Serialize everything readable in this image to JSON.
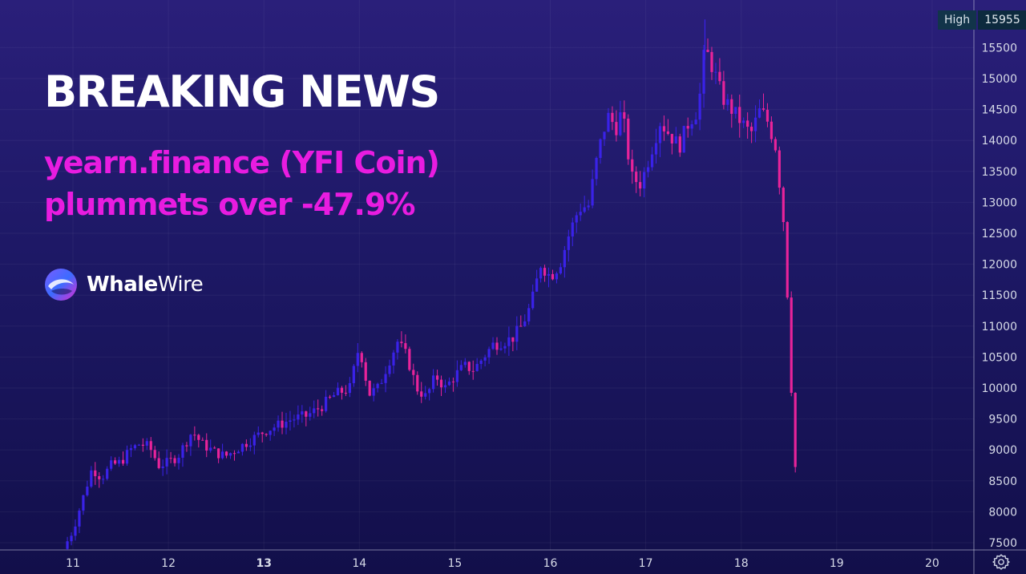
{
  "headline": "BREAKING NEWS",
  "subheadline": {
    "line1": "yearn.finance (YFI Coin)",
    "line2": "plummets over -47.9%"
  },
  "brand": {
    "name_bold": "Whale",
    "name_light": "Wire",
    "icon": "whale-logo-icon"
  },
  "high_marker": {
    "label": "High",
    "value": "15955"
  },
  "colors": {
    "up": "#3a22e8",
    "down": "#e8239a",
    "headline": "#ffffff",
    "accent": "#e81ce0",
    "axis_text": "#d7dbe8"
  },
  "chart_data": {
    "type": "candlestick",
    "title": "",
    "xlabel": "",
    "ylabel": "",
    "grid": true,
    "x_ticks": [
      "11",
      "12",
      "13",
      "14",
      "15",
      "16",
      "17",
      "18",
      "19",
      "20"
    ],
    "x_bold_ticks": [
      "13"
    ],
    "y_ticks": [
      7500,
      8000,
      8500,
      9000,
      9500,
      10000,
      10500,
      11000,
      11500,
      12000,
      12500,
      13000,
      13500,
      14000,
      14500,
      15000,
      15500
    ],
    "xlim": [
      10.9,
      20.4
    ],
    "ylim": [
      7400,
      16100
    ],
    "high": 15955,
    "price_path": [
      [
        10.9,
        7400
      ],
      [
        11.0,
        7700
      ],
      [
        11.1,
        8200
      ],
      [
        11.2,
        8700
      ],
      [
        11.3,
        8550
      ],
      [
        11.4,
        8750
      ],
      [
        11.5,
        8800
      ],
      [
        11.6,
        9000
      ],
      [
        11.7,
        9100
      ],
      [
        11.8,
        9050
      ],
      [
        11.9,
        8750
      ],
      [
        12.0,
        8800
      ],
      [
        12.1,
        8900
      ],
      [
        12.25,
        9300
      ],
      [
        12.35,
        9100
      ],
      [
        12.5,
        8950
      ],
      [
        12.6,
        8900
      ],
      [
        12.75,
        9050
      ],
      [
        12.9,
        9200
      ],
      [
        13.0,
        9300
      ],
      [
        13.15,
        9400
      ],
      [
        13.3,
        9500
      ],
      [
        13.45,
        9550
      ],
      [
        13.6,
        9700
      ],
      [
        13.75,
        9900
      ],
      [
        13.9,
        10000
      ],
      [
        14.0,
        10700
      ],
      [
        14.05,
        10300
      ],
      [
        14.1,
        9900
      ],
      [
        14.2,
        10000
      ],
      [
        14.3,
        10400
      ],
      [
        14.4,
        10750
      ],
      [
        14.5,
        10500
      ],
      [
        14.6,
        10000
      ],
      [
        14.7,
        9850
      ],
      [
        14.8,
        10200
      ],
      [
        14.9,
        10000
      ],
      [
        15.0,
        10200
      ],
      [
        15.1,
        10350
      ],
      [
        15.2,
        10300
      ],
      [
        15.3,
        10500
      ],
      [
        15.4,
        10700
      ],
      [
        15.5,
        10750
      ],
      [
        15.6,
        10800
      ],
      [
        15.7,
        11000
      ],
      [
        15.8,
        11350
      ],
      [
        15.9,
        12000
      ],
      [
        16.0,
        11800
      ],
      [
        16.1,
        12000
      ],
      [
        16.2,
        12500
      ],
      [
        16.3,
        12900
      ],
      [
        16.4,
        12950
      ],
      [
        16.5,
        13800
      ],
      [
        16.6,
        14400
      ],
      [
        16.7,
        14200
      ],
      [
        16.75,
        14500
      ],
      [
        16.85,
        13400
      ],
      [
        16.95,
        13300
      ],
      [
        17.05,
        13800
      ],
      [
        17.15,
        14300
      ],
      [
        17.25,
        14100
      ],
      [
        17.35,
        13900
      ],
      [
        17.45,
        14300
      ],
      [
        17.55,
        14500
      ],
      [
        17.62,
        15500
      ],
      [
        17.72,
        15100
      ],
      [
        17.8,
        14700
      ],
      [
        17.9,
        14500
      ],
      [
        18.0,
        14300
      ],
      [
        18.1,
        14100
      ],
      [
        18.2,
        14500
      ],
      [
        18.28,
        14300
      ],
      [
        18.36,
        13900
      ],
      [
        18.45,
        12600
      ],
      [
        18.5,
        11000
      ],
      [
        18.55,
        9000
      ],
      [
        18.58,
        8500
      ]
    ]
  }
}
